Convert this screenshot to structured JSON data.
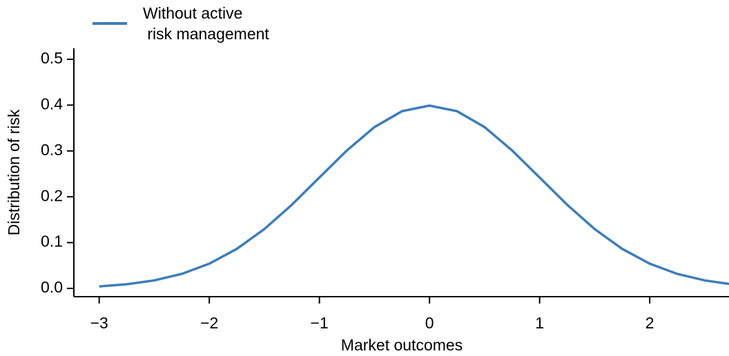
{
  "chart_data": {
    "type": "line",
    "xlabel": "Market outcomes",
    "ylabel": "Distribution of risk",
    "x": [
      -3,
      -2.75,
      -2.5,
      -2.25,
      -2,
      -1.75,
      -1.5,
      -1.25,
      -1,
      -0.75,
      -0.5,
      -0.25,
      0,
      0.25,
      0.5,
      0.75,
      1,
      1.25,
      1.5,
      1.75,
      2,
      2.25,
      2.5,
      2.72
    ],
    "series": [
      {
        "name": "Without active\n risk management",
        "color": "#3b7dbd",
        "values": [
          0.0044,
          0.0091,
          0.0175,
          0.0317,
          0.054,
          0.0863,
          0.1295,
          0.1826,
          0.242,
          0.3011,
          0.3521,
          0.3867,
          0.3989,
          0.3867,
          0.3521,
          0.3011,
          0.242,
          0.1826,
          0.1295,
          0.0863,
          0.054,
          0.0317,
          0.0175,
          0.0099
        ]
      }
    ],
    "xlim": [
      -3.23,
      2.72
    ],
    "ylim": [
      -0.018,
      0.524
    ],
    "xticks": [
      {
        "value": -3,
        "label": "−3"
      },
      {
        "value": -2,
        "label": "−2"
      },
      {
        "value": -1,
        "label": "−1"
      },
      0,
      1,
      2
    ],
    "yticks": [
      {
        "value": 0,
        "label": "0.0"
      },
      0.1,
      0.2,
      0.3,
      0.4,
      0.5
    ],
    "grid": false,
    "legend": "top-left"
  }
}
